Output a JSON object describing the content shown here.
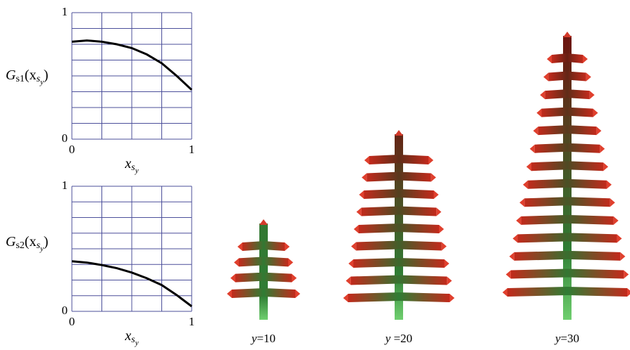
{
  "chart_data": [
    {
      "type": "line",
      "ylabel": [
        [
          "G",
          0
        ],
        [
          "s1",
          1
        ],
        [
          "(x",
          0
        ],
        [
          "s",
          1
        ],
        [
          "y",
          2
        ],
        [
          ")",
          0
        ]
      ],
      "xlabel": [
        [
          "x",
          0
        ],
        [
          "s",
          1
        ],
        [
          "y",
          2
        ]
      ],
      "x": [
        0,
        0.125,
        0.25,
        0.375,
        0.5,
        0.625,
        0.75,
        0.875,
        1
      ],
      "values": [
        0.77,
        0.78,
        0.77,
        0.75,
        0.72,
        0.67,
        0.6,
        0.5,
        0.39
      ],
      "color": "#000000",
      "xlim": [
        0,
        1
      ],
      "ylim": [
        0,
        1
      ],
      "xticks": [
        0,
        1
      ],
      "yticks": [
        0,
        1
      ],
      "grid": {
        "x": 4,
        "y": 8
      }
    },
    {
      "type": "line",
      "ylabel": [
        [
          "G",
          0
        ],
        [
          "s2",
          1
        ],
        [
          "(x",
          0
        ],
        [
          "s",
          1
        ],
        [
          "y",
          2
        ],
        [
          ")",
          0
        ]
      ],
      "xlabel": [
        [
          "x",
          0
        ],
        [
          "s",
          1
        ],
        [
          "y",
          2
        ]
      ],
      "x": [
        0,
        0.125,
        0.25,
        0.375,
        0.5,
        0.625,
        0.75,
        0.875,
        1
      ],
      "values": [
        0.4,
        0.39,
        0.37,
        0.345,
        0.31,
        0.265,
        0.21,
        0.13,
        0.04
      ],
      "color": "#000000",
      "xlim": [
        0,
        1
      ],
      "ylim": [
        0,
        1
      ],
      "xticks": [
        0,
        1
      ],
      "yticks": [
        0,
        1
      ],
      "grid": {
        "x": 4,
        "y": 8
      }
    }
  ],
  "captions": [
    [
      "y",
      "=10"
    ],
    [
      "y",
      " =20"
    ],
    [
      "y",
      "=30"
    ]
  ]
}
